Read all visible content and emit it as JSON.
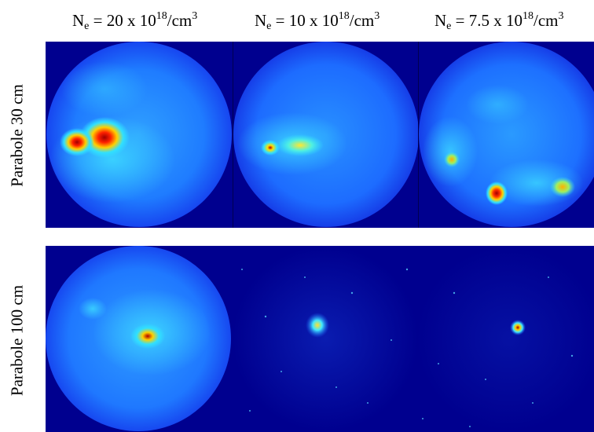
{
  "columns": [
    {
      "prefix": "N",
      "sub": "e",
      "mid": " = 20 x 10",
      "sup1": "18",
      "unit": "/cm",
      "sup2": "3"
    },
    {
      "prefix": "N",
      "sub": "e",
      "mid": " = 10 x 10",
      "sup1": "18",
      "unit": "/cm",
      "sup2": "3"
    },
    {
      "prefix": "N",
      "sub": "e",
      "mid": " = 7.5 x 10",
      "sup1": "18",
      "unit": "/cm",
      "sup2": "3"
    }
  ],
  "rows": [
    {
      "label": "Parabole 30 cm"
    },
    {
      "label": "Parabole 100 cm"
    }
  ],
  "colors": {
    "background": "#00008f",
    "disk_edge": "#1a4dff",
    "disk_center": "#1f8cff",
    "hot_red": "#c00000",
    "hot_yellow": "#ffe000",
    "hot_cyan": "#22e0ff"
  }
}
